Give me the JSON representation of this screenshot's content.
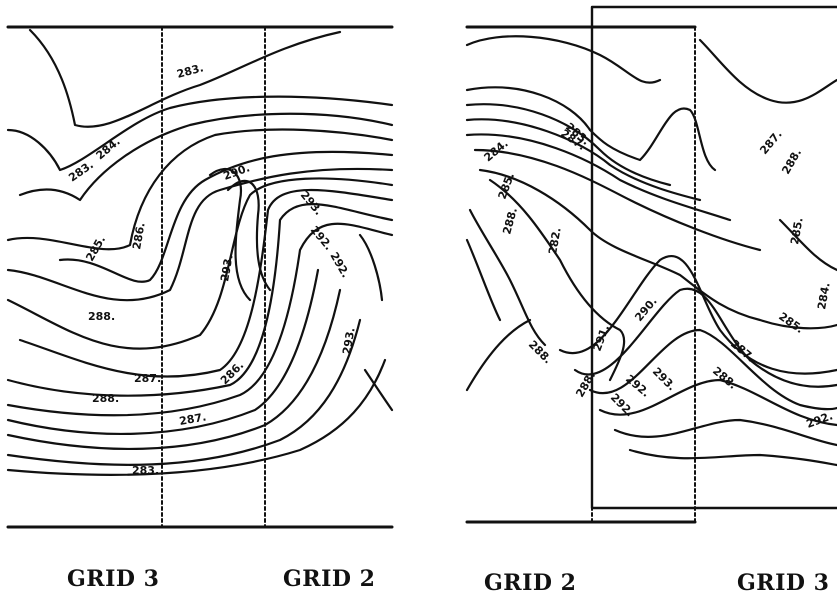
{
  "panels": [
    {
      "id": "left",
      "labels": [
        "GRID 3",
        "GRID 2"
      ],
      "contour_labels": [
        "283.",
        "283.",
        "284.",
        "285.",
        "286.",
        "288.",
        "287.",
        "288.",
        "290.",
        "293.",
        "292.",
        "293.",
        "286.",
        "287.",
        "283.",
        "292.",
        "293."
      ]
    },
    {
      "id": "right",
      "labels": [
        "GRID 2",
        "GRID 3"
      ],
      "contour_labels": [
        "283.",
        "284.",
        "285.",
        "288.",
        "282.",
        "288.",
        "287.",
        "288.",
        "290.",
        "291.",
        "292.",
        "293.",
        "292.",
        "287.",
        "288.",
        "285.",
        "292."
      ]
    }
  ]
}
